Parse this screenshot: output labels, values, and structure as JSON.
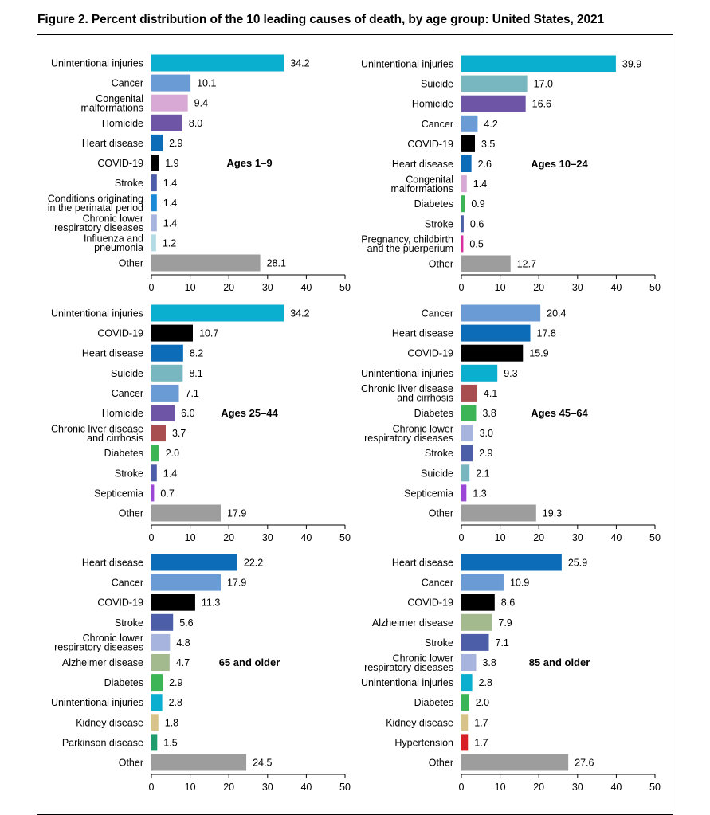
{
  "title": "Figure 2. Percent distribution of the 10 leading causes of death, by age group: United States, 2021",
  "colors": {
    "unintentional_injuries": "#0aaecf",
    "cancer": "#6a9bd4",
    "congenital": "#d8a9d4",
    "homicide": "#6e55a6",
    "heart_disease": "#0d6cb8",
    "covid19": "#000000",
    "stroke": "#4c5ea8",
    "perinatal": "#1b88d8",
    "chronic_lower_respiratory": "#a7b5de",
    "influenza": "#b3dbe4",
    "other": "#9d9d9d",
    "suicide": "#78b6c0",
    "diabetes": "#3bb555",
    "pregnancy": "#d82fa0",
    "liver": "#a84e50",
    "septicemia": "#9b46d6",
    "alzheimer": "#a3b98e",
    "kidney": "#d8c48a",
    "parkinson": "#1e9c6c",
    "hypertension": "#d81f26"
  },
  "chart_data": [
    {
      "type": "bar",
      "orientation": "horizontal",
      "group_label": "Ages 1–9",
      "xlim": [
        0,
        50
      ],
      "xticks": [
        "0",
        "10",
        "20",
        "30",
        "40",
        "50"
      ],
      "bars": [
        {
          "label": "Unintentional injuries",
          "value": 34.2,
          "value_text": "34.2",
          "color_key": "unintentional_injuries"
        },
        {
          "label": "Cancer",
          "value": 10.1,
          "value_text": "10.1",
          "color_key": "cancer"
        },
        {
          "label": "Congenital\nmalformations",
          "value": 9.4,
          "value_text": "9.4",
          "color_key": "congenital"
        },
        {
          "label": "Homicide",
          "value": 8.0,
          "value_text": "8.0",
          "color_key": "homicide"
        },
        {
          "label": "Heart disease",
          "value": 2.9,
          "value_text": "2.9",
          "color_key": "heart_disease"
        },
        {
          "label": "COVID-19",
          "value": 1.9,
          "value_text": "1.9",
          "color_key": "covid19"
        },
        {
          "label": "Stroke",
          "value": 1.4,
          "value_text": "1.4",
          "color_key": "stroke"
        },
        {
          "label": "Conditions originating\nin the perinatal period",
          "value": 1.4,
          "value_text": "1.4",
          "color_key": "perinatal"
        },
        {
          "label": "Chronic lower\nrespiratory diseases",
          "value": 1.4,
          "value_text": "1.4",
          "color_key": "chronic_lower_respiratory"
        },
        {
          "label": "Influenza and\npneumonia",
          "value": 1.2,
          "value_text": "1.2",
          "color_key": "influenza"
        },
        {
          "label": "Other",
          "value": 28.1,
          "value_text": "28.1",
          "color_key": "other"
        }
      ]
    },
    {
      "type": "bar",
      "orientation": "horizontal",
      "group_label": "Ages 10–24",
      "xlim": [
        0,
        50
      ],
      "xticks": [
        "0",
        "10",
        "20",
        "30",
        "40",
        "50"
      ],
      "bars": [
        {
          "label": "Unintentional injuries",
          "value": 39.9,
          "value_text": "39.9",
          "color_key": "unintentional_injuries"
        },
        {
          "label": "Suicide",
          "value": 17.0,
          "value_text": "17.0",
          "color_key": "suicide"
        },
        {
          "label": "Homicide",
          "value": 16.6,
          "value_text": "16.6",
          "color_key": "homicide"
        },
        {
          "label": "Cancer",
          "value": 4.2,
          "value_text": "4.2",
          "color_key": "cancer"
        },
        {
          "label": "COVID-19",
          "value": 3.5,
          "value_text": "3.5",
          "color_key": "covid19"
        },
        {
          "label": "Heart disease",
          "value": 2.6,
          "value_text": "2.6",
          "color_key": "heart_disease"
        },
        {
          "label": "Congenital\nmalformations",
          "value": 1.4,
          "value_text": "1.4",
          "color_key": "congenital"
        },
        {
          "label": "Diabetes",
          "value": 0.9,
          "value_text": "0.9",
          "color_key": "diabetes"
        },
        {
          "label": "Stroke",
          "value": 0.6,
          "value_text": "0.6",
          "color_key": "stroke"
        },
        {
          "label": "Pregnancy, childbirth\nand the puerperium",
          "value": 0.5,
          "value_text": "0.5",
          "color_key": "pregnancy"
        },
        {
          "label": "Other",
          "value": 12.7,
          "value_text": "12.7",
          "color_key": "other"
        }
      ]
    },
    {
      "type": "bar",
      "orientation": "horizontal",
      "group_label": "Ages 25–44",
      "xlim": [
        0,
        50
      ],
      "xticks": [
        "0",
        "10",
        "20",
        "30",
        "40",
        "50"
      ],
      "bars": [
        {
          "label": "Unintentional injuries",
          "value": 34.2,
          "value_text": "34.2",
          "color_key": "unintentional_injuries"
        },
        {
          "label": "COVID-19",
          "value": 10.7,
          "value_text": "10.7",
          "color_key": "covid19"
        },
        {
          "label": "Heart disease",
          "value": 8.2,
          "value_text": "8.2",
          "color_key": "heart_disease"
        },
        {
          "label": "Suicide",
          "value": 8.1,
          "value_text": "8.1",
          "color_key": "suicide"
        },
        {
          "label": "Cancer",
          "value": 7.1,
          "value_text": "7.1",
          "color_key": "cancer"
        },
        {
          "label": "Homicide",
          "value": 6.0,
          "value_text": "6.0",
          "color_key": "homicide"
        },
        {
          "label": "Chronic liver disease\nand cirrhosis",
          "value": 3.7,
          "value_text": "3.7",
          "color_key": "liver"
        },
        {
          "label": "Diabetes",
          "value": 2.0,
          "value_text": "2.0",
          "color_key": "diabetes"
        },
        {
          "label": "Stroke",
          "value": 1.4,
          "value_text": "1.4",
          "color_key": "stroke"
        },
        {
          "label": "Septicemia",
          "value": 0.7,
          "value_text": "0.7",
          "color_key": "septicemia"
        },
        {
          "label": "Other",
          "value": 17.9,
          "value_text": "17.9",
          "color_key": "other"
        }
      ]
    },
    {
      "type": "bar",
      "orientation": "horizontal",
      "group_label": "Ages 45–64",
      "xlim": [
        0,
        50
      ],
      "xticks": [
        "0",
        "10",
        "20",
        "30",
        "40",
        "50"
      ],
      "bars": [
        {
          "label": "Cancer",
          "value": 20.4,
          "value_text": "20.4",
          "color_key": "cancer"
        },
        {
          "label": "Heart disease",
          "value": 17.8,
          "value_text": "17.8",
          "color_key": "heart_disease"
        },
        {
          "label": "COVID-19",
          "value": 15.9,
          "value_text": "15.9",
          "color_key": "covid19"
        },
        {
          "label": "Unintentional injuries",
          "value": 9.3,
          "value_text": "9.3",
          "color_key": "unintentional_injuries"
        },
        {
          "label": "Chronic liver disease\nand cirrhosis",
          "value": 4.1,
          "value_text": "4.1",
          "color_key": "liver"
        },
        {
          "label": "Diabetes",
          "value": 3.8,
          "value_text": "3.8",
          "color_key": "diabetes"
        },
        {
          "label": "Chronic lower\nrespiratory diseases",
          "value": 3.0,
          "value_text": "3.0",
          "color_key": "chronic_lower_respiratory"
        },
        {
          "label": "Stroke",
          "value": 2.9,
          "value_text": "2.9",
          "color_key": "stroke"
        },
        {
          "label": "Suicide",
          "value": 2.1,
          "value_text": "2.1",
          "color_key": "suicide"
        },
        {
          "label": "Septicemia",
          "value": 1.3,
          "value_text": "1.3",
          "color_key": "septicemia"
        },
        {
          "label": "Other",
          "value": 19.3,
          "value_text": "19.3",
          "color_key": "other"
        }
      ]
    },
    {
      "type": "bar",
      "orientation": "horizontal",
      "group_label": "65 and older",
      "xlim": [
        0,
        50
      ],
      "xticks": [
        "0",
        "10",
        "20",
        "30",
        "40",
        "50"
      ],
      "bars": [
        {
          "label": "Heart disease",
          "value": 22.2,
          "value_text": "22.2",
          "color_key": "heart_disease"
        },
        {
          "label": "Cancer",
          "value": 17.9,
          "value_text": "17.9",
          "color_key": "cancer"
        },
        {
          "label": "COVID-19",
          "value": 11.3,
          "value_text": "11.3",
          "color_key": "covid19"
        },
        {
          "label": "Stroke",
          "value": 5.6,
          "value_text": "5.6",
          "color_key": "stroke"
        },
        {
          "label": "Chronic lower\nrespiratory diseases",
          "value": 4.8,
          "value_text": "4.8",
          "color_key": "chronic_lower_respiratory"
        },
        {
          "label": "Alzheimer disease",
          "value": 4.7,
          "value_text": "4.7",
          "color_key": "alzheimer"
        },
        {
          "label": "Diabetes",
          "value": 2.9,
          "value_text": "2.9",
          "color_key": "diabetes"
        },
        {
          "label": "Unintentional injuries",
          "value": 2.8,
          "value_text": "2.8",
          "color_key": "unintentional_injuries"
        },
        {
          "label": "Kidney disease",
          "value": 1.8,
          "value_text": "1.8",
          "color_key": "kidney"
        },
        {
          "label": "Parkinson disease",
          "value": 1.5,
          "value_text": "1.5",
          "color_key": "parkinson"
        },
        {
          "label": "Other",
          "value": 24.5,
          "value_text": "24.5",
          "color_key": "other"
        }
      ]
    },
    {
      "type": "bar",
      "orientation": "horizontal",
      "group_label": "85 and older",
      "xlim": [
        0,
        50
      ],
      "xticks": [
        "0",
        "10",
        "20",
        "30",
        "40",
        "50"
      ],
      "bars": [
        {
          "label": "Heart disease",
          "value": 25.9,
          "value_text": "25.9",
          "color_key": "heart_disease"
        },
        {
          "label": "Cancer",
          "value": 10.9,
          "value_text": "10.9",
          "color_key": "cancer"
        },
        {
          "label": "COVID-19",
          "value": 8.6,
          "value_text": "8.6",
          "color_key": "covid19"
        },
        {
          "label": "Alzheimer disease",
          "value": 7.9,
          "value_text": "7.9",
          "color_key": "alzheimer"
        },
        {
          "label": "Stroke",
          "value": 7.1,
          "value_text": "7.1",
          "color_key": "stroke"
        },
        {
          "label": "Chronic lower\nrespiratory diseases",
          "value": 3.8,
          "value_text": "3.8",
          "color_key": "chronic_lower_respiratory"
        },
        {
          "label": "Unintentional injuries",
          "value": 2.8,
          "value_text": "2.8",
          "color_key": "unintentional_injuries"
        },
        {
          "label": "Diabetes",
          "value": 2.0,
          "value_text": "2.0",
          "color_key": "diabetes"
        },
        {
          "label": "Kidney disease",
          "value": 1.7,
          "value_text": "1.7",
          "color_key": "kidney"
        },
        {
          "label": "Hypertension",
          "value": 1.7,
          "value_text": "1.7",
          "color_key": "hypertension"
        },
        {
          "label": "Other",
          "value": 27.6,
          "value_text": "27.6",
          "color_key": "other"
        }
      ]
    }
  ]
}
